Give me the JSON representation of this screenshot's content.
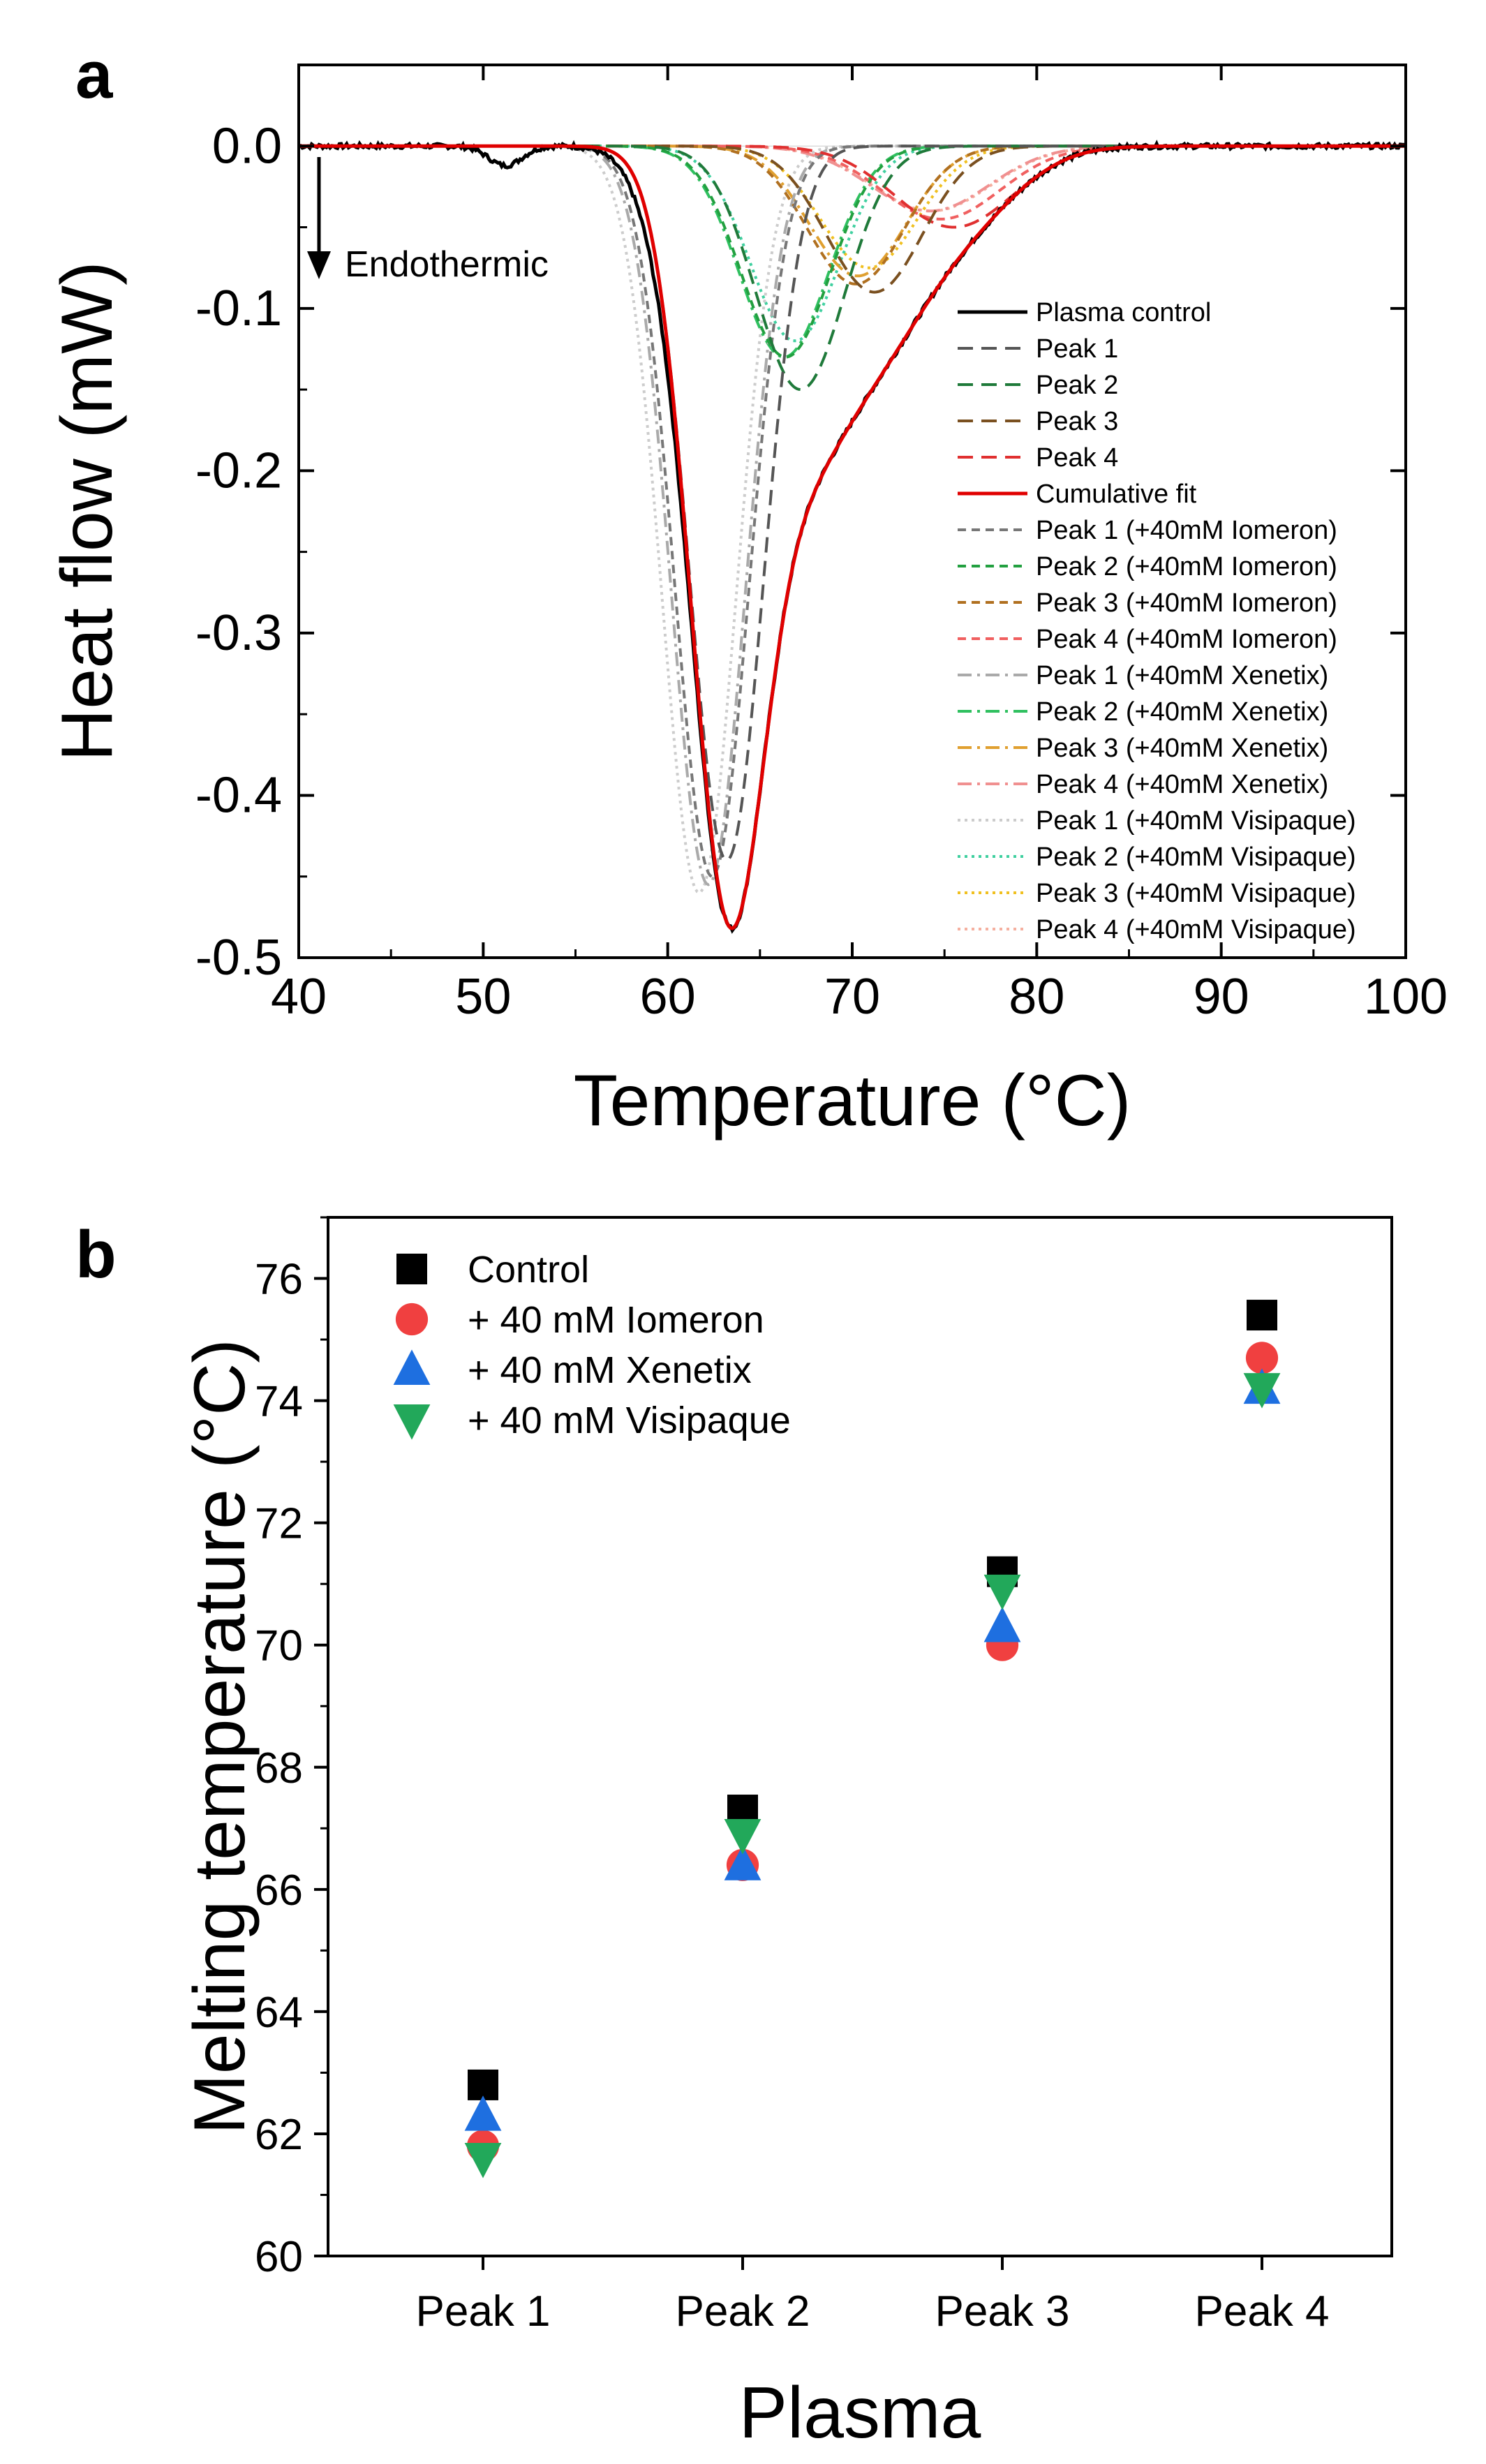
{
  "chart_data": [
    {
      "panel": "a",
      "type": "line",
      "xlabel": "Temperature (°C)",
      "ylabel": "Heat flow (mW)",
      "xlim": [
        40,
        100
      ],
      "ylim": [
        -0.5,
        0.05
      ],
      "xticks": [
        40,
        50,
        60,
        70,
        80,
        90,
        100
      ],
      "yticks": [
        0.0,
        -0.1,
        -0.2,
        -0.3,
        -0.4,
        -0.5
      ],
      "ytick_labels": [
        "0.0",
        "-0.1",
        "-0.2",
        "-0.3",
        "-0.4",
        "-0.5"
      ],
      "annotation": "Endothermic",
      "legend_position": "right",
      "series": [
        {
          "name": "Plasma control",
          "color": "#000000",
          "style": "solid",
          "kind": "control"
        },
        {
          "name": "Peak 1",
          "color": "#555555",
          "style": "dash",
          "center": 63.2,
          "amp": -0.44,
          "sigma": 2.0
        },
        {
          "name": "Peak 2",
          "color": "#1f7a3a",
          "style": "dash",
          "center": 67.2,
          "amp": -0.15,
          "sigma": 2.4
        },
        {
          "name": "Peak 3",
          "color": "#7a5020",
          "style": "dash",
          "center": 71.2,
          "amp": -0.09,
          "sigma": 2.6
        },
        {
          "name": "Peak 4",
          "color": "#e03030",
          "style": "dash",
          "center": 75.5,
          "amp": -0.05,
          "sigma": 3.2
        },
        {
          "name": "Cumulative fit",
          "color": "#e00000",
          "style": "solid",
          "kind": "fit"
        },
        {
          "name": "Peak 1 (+40mM Iomeron)",
          "color": "#777777",
          "style": "dash2",
          "center": 62.4,
          "amp": -0.45,
          "sigma": 2.0
        },
        {
          "name": "Peak 2 (+40mM Iomeron)",
          "color": "#22a040",
          "style": "dash2",
          "center": 66.4,
          "amp": -0.13,
          "sigma": 2.4
        },
        {
          "name": "Peak 3 (+40mM Iomeron)",
          "color": "#b07020",
          "style": "dash2",
          "center": 70.2,
          "amp": -0.085,
          "sigma": 2.6
        },
        {
          "name": "Peak 4 (+40mM Iomeron)",
          "color": "#f06060",
          "style": "dash2",
          "center": 74.8,
          "amp": -0.045,
          "sigma": 3.2
        },
        {
          "name": "Peak 1 (+40mM Xenetix)",
          "color": "#aaaaaa",
          "style": "dashdot",
          "center": 62.2,
          "amp": -0.455,
          "sigma": 2.0
        },
        {
          "name": "Peak 2 (+40mM Xenetix)",
          "color": "#30c060",
          "style": "dashdot",
          "center": 66.3,
          "amp": -0.13,
          "sigma": 2.4
        },
        {
          "name": "Peak 3 (+40mM Xenetix)",
          "color": "#e0a030",
          "style": "dashdot",
          "center": 70.3,
          "amp": -0.08,
          "sigma": 2.6
        },
        {
          "name": "Peak 4 (+40mM Xenetix)",
          "color": "#f09090",
          "style": "dashdot",
          "center": 74.2,
          "amp": -0.04,
          "sigma": 3.2
        },
        {
          "name": "Peak 1 (+40mM Visipaque)",
          "color": "#cccccc",
          "style": "dot",
          "center": 61.7,
          "amp": -0.46,
          "sigma": 2.0
        },
        {
          "name": "Peak 2 (+40mM Visipaque)",
          "color": "#40d0a0",
          "style": "dot",
          "center": 66.9,
          "amp": -0.12,
          "sigma": 2.4
        },
        {
          "name": "Peak 3 (+40mM Visipaque)",
          "color": "#f0c020",
          "style": "dot",
          "center": 70.9,
          "amp": -0.075,
          "sigma": 2.6
        },
        {
          "name": "Peak 4 (+40mM Visipaque)",
          "color": "#f5b0a0",
          "style": "dot",
          "center": 74.3,
          "amp": -0.04,
          "sigma": 3.2
        }
      ]
    },
    {
      "panel": "b",
      "type": "scatter",
      "xlabel": "Plasma",
      "ylabel": "Melting temperature (°C)",
      "categories": [
        "Peak 1",
        "Peak 2",
        "Peak 3",
        "Peak 4"
      ],
      "ylim": [
        60,
        77
      ],
      "yticks": [
        60,
        62,
        64,
        66,
        68,
        70,
        72,
        74,
        76
      ],
      "legend_position": "top-left",
      "series": [
        {
          "name": "Control",
          "marker": "square",
          "color": "#000000",
          "values": [
            62.8,
            67.3,
            71.2,
            75.4
          ]
        },
        {
          "name": "+ 40 mM Iomeron",
          "marker": "circle",
          "color": "#f04040",
          "values": [
            61.8,
            66.4,
            70.0,
            74.7
          ]
        },
        {
          "name": "+ 40 mM Xenetix",
          "marker": "triangle-up",
          "color": "#1e6fe0",
          "values": [
            62.3,
            66.4,
            70.3,
            74.2
          ]
        },
        {
          "name": "+ 40 mM Visipaque",
          "marker": "triangle-down",
          "color": "#22a85a",
          "values": [
            61.6,
            66.9,
            70.9,
            74.2
          ]
        }
      ]
    }
  ]
}
